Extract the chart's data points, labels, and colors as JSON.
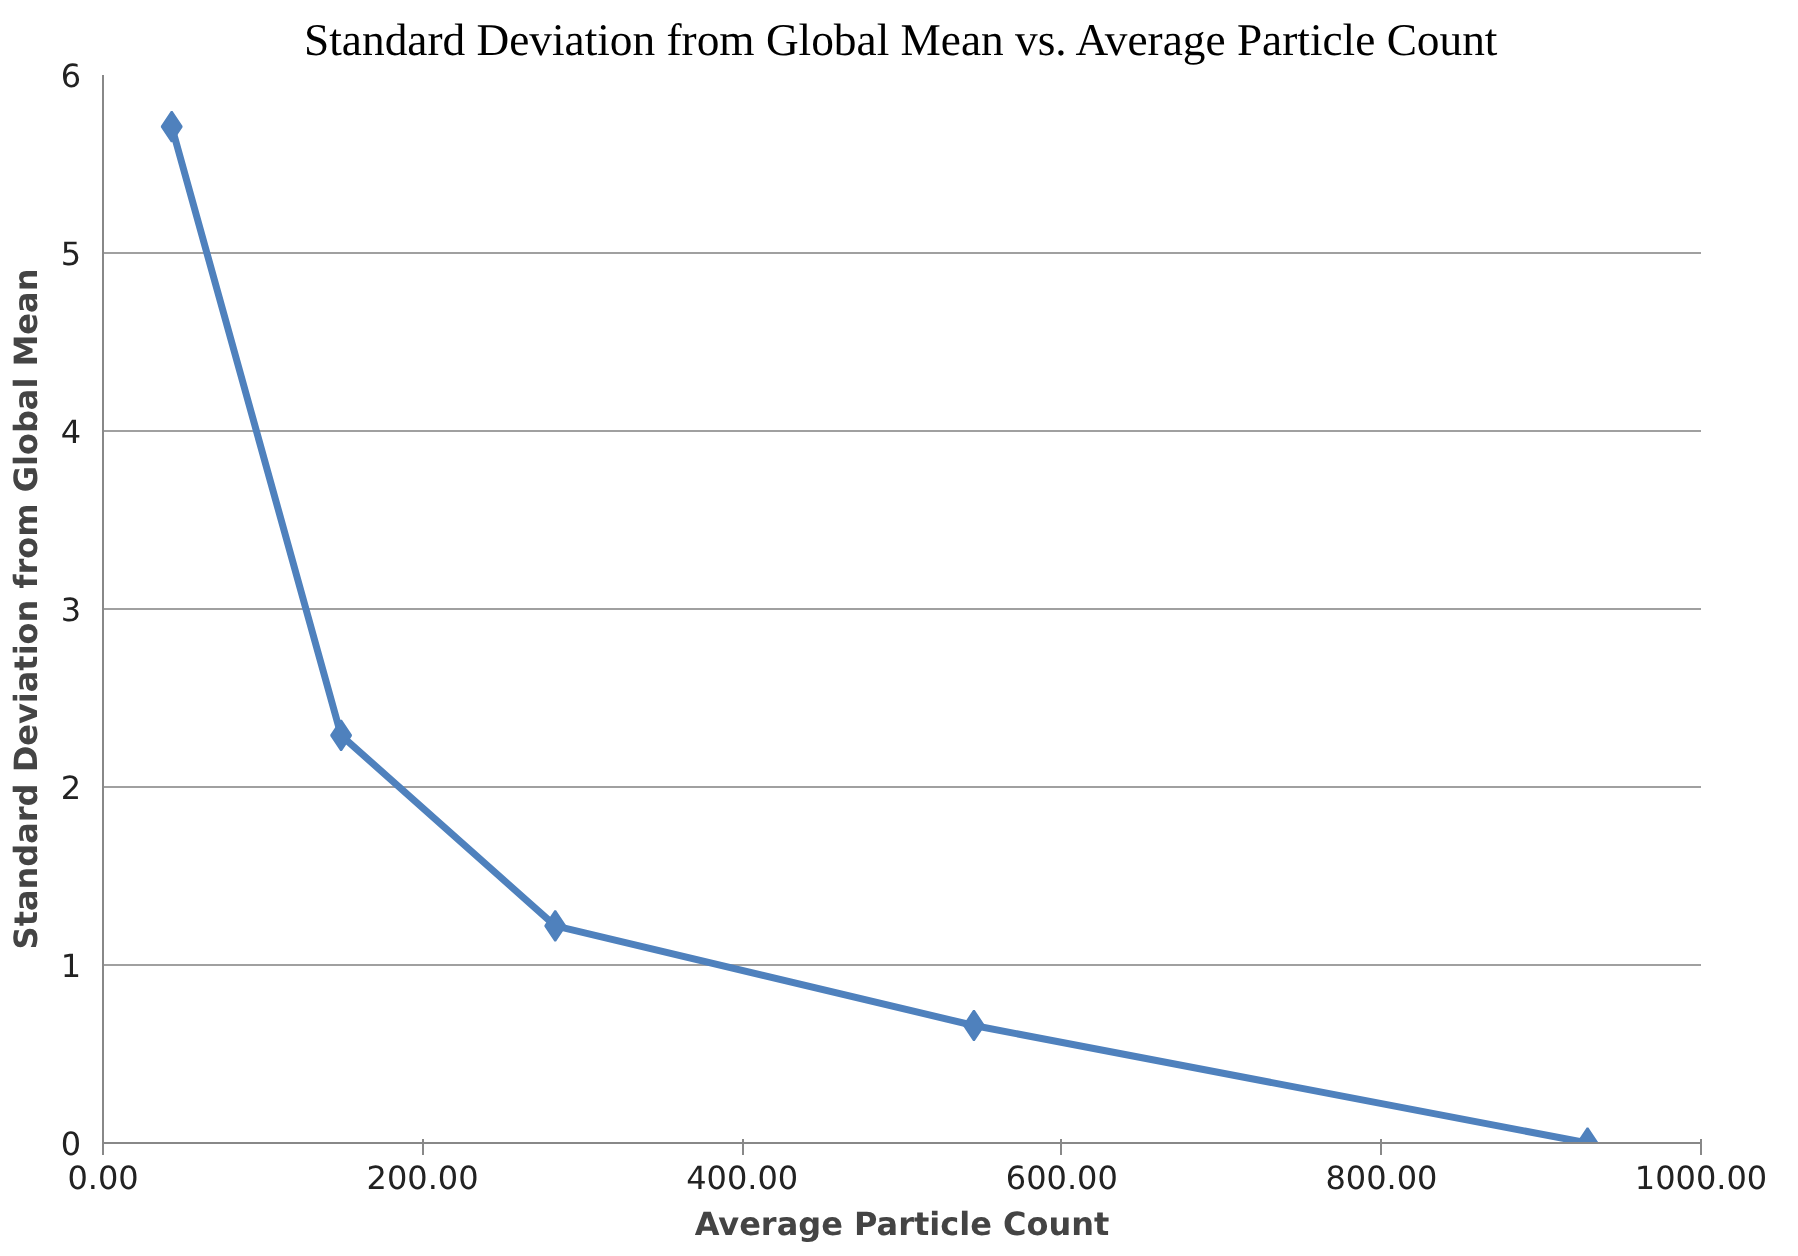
{
  "chart_data": {
    "type": "line",
    "title": "Standard Deviation from Global Mean vs. Average Particle Count",
    "xlabel": "Average Particle Count",
    "ylabel": "Standard Deviation from Global Mean",
    "x": [
      43,
      149,
      283,
      545,
      929
    ],
    "series": [
      {
        "color": "#4f81bd",
        "values": [
          5.71,
          2.29,
          1.22,
          0.66,
          0.0
        ]
      }
    ],
    "xlim": [
      0,
      1000
    ],
    "ylim": [
      0,
      6
    ],
    "xticks": [
      {
        "value": 0,
        "label": "0.00"
      },
      {
        "value": 200,
        "label": "200.00"
      },
      {
        "value": 400,
        "label": "400.00"
      },
      {
        "value": 600,
        "label": "600.00"
      },
      {
        "value": 800,
        "label": "800.00"
      },
      {
        "value": 1000,
        "label": "1000.00"
      }
    ],
    "yticks": [
      0,
      1,
      2,
      3,
      4,
      5,
      6
    ],
    "grid": "y",
    "marker": "diamond",
    "line_style": "solid"
  }
}
